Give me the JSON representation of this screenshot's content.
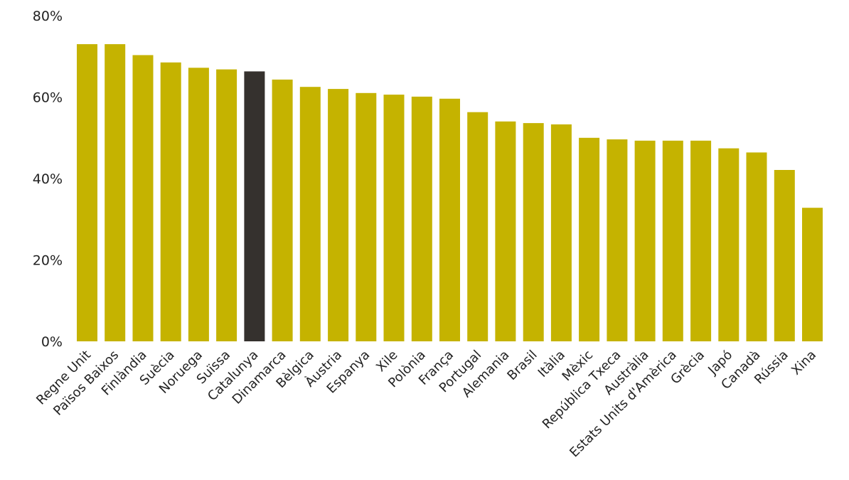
{
  "chart_data": {
    "type": "bar",
    "title": "",
    "xlabel": "",
    "ylabel": "",
    "ylim": [
      0,
      80
    ],
    "yticks": [
      0,
      20,
      40,
      60,
      80
    ],
    "ytick_labels": [
      "0%",
      "20%",
      "40%",
      "60%",
      "80%"
    ],
    "grid": false,
    "categories": [
      "Regne Unit",
      "Països Baixos",
      "Finlàndia",
      "Suècia",
      "Noruega",
      "Suïssa",
      "Catalunya",
      "Dinamarca",
      "Bèlgica",
      "Àustria",
      "Espanya",
      "Xile",
      "Polònia",
      "França",
      "Portugal",
      "Alemania",
      "Brasil",
      "Itàlia",
      "Mèxic",
      "República Txeca",
      "Austràlia",
      "Estats Units d'Amèrica",
      "Grècia",
      "Japó",
      "Canadà",
      "Rússia",
      "Xina"
    ],
    "values": [
      73.0,
      73.0,
      70.3,
      68.5,
      67.2,
      66.8,
      66.3,
      64.3,
      62.5,
      62.0,
      61.0,
      60.6,
      60.1,
      59.6,
      56.3,
      54.0,
      53.6,
      53.3,
      50.0,
      49.6,
      49.3,
      49.3,
      49.3,
      47.4,
      46.4,
      42.1,
      32.8
    ],
    "colors": {
      "default": "#c5b300",
      "highlight": "#35312e"
    },
    "highlight_category": "Catalunya"
  }
}
